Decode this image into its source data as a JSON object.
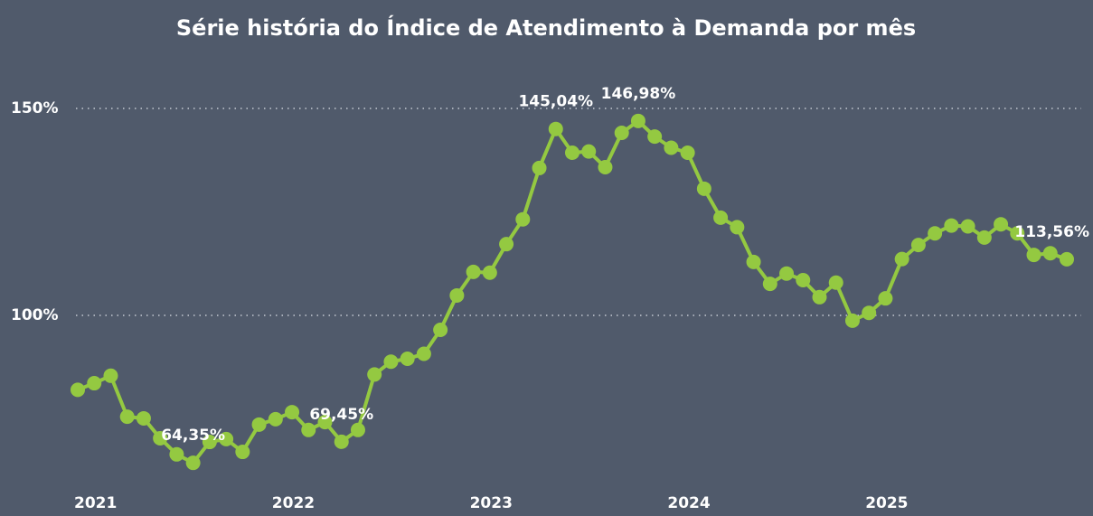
{
  "chart_data": {
    "type": "line",
    "title": "Série história do Índice de Atendimento à Demanda por mês",
    "categories": [
      "2021",
      null,
      null,
      null,
      null,
      null,
      null,
      null,
      null,
      null,
      null,
      null,
      "2022",
      null,
      null,
      null,
      null,
      null,
      null,
      null,
      null,
      null,
      null,
      null,
      "2023",
      null,
      null,
      null,
      null,
      null,
      null,
      null,
      null,
      null,
      null,
      null,
      "2024",
      null,
      null,
      null,
      null,
      null,
      null,
      null,
      null,
      null,
      null,
      null,
      "2025",
      null,
      null,
      null,
      null,
      null,
      null,
      null,
      null,
      null,
      null,
      null,
      null
    ],
    "series": [
      {
        "name": "Índice de Atendimento à Demanda",
        "color": "#94c941",
        "values": [
          82.0,
          83.6,
          85.4,
          75.5,
          75.1,
          70.3,
          66.4,
          64.35,
          69.4,
          70.1,
          67.0,
          73.6,
          74.9,
          76.6,
          72.3,
          74.2,
          69.45,
          72.3,
          85.7,
          88.8,
          89.5,
          90.7,
          96.5,
          104.8,
          110.5,
          110.3,
          117.2,
          123.2,
          135.6,
          145.04,
          139.3,
          139.6,
          135.8,
          144.1,
          146.98,
          143.2,
          140.5,
          139.3,
          130.6,
          123.6,
          121.3,
          112.9,
          107.6,
          110.1,
          108.5,
          104.4,
          107.9,
          98.7,
          100.6,
          104.1,
          113.6,
          117.0,
          119.8,
          121.7,
          121.5,
          118.8,
          122.0,
          119.8,
          114.6,
          115.0,
          113.56
        ],
        "value_labels": [
          null,
          null,
          null,
          null,
          null,
          null,
          null,
          "64,35%",
          null,
          null,
          null,
          null,
          null,
          null,
          null,
          null,
          "69,45%",
          null,
          null,
          null,
          null,
          null,
          null,
          null,
          null,
          null,
          null,
          null,
          null,
          "145,04%",
          null,
          null,
          null,
          null,
          "146,98%",
          null,
          null,
          null,
          null,
          null,
          null,
          null,
          null,
          null,
          null,
          null,
          null,
          null,
          null,
          null,
          null,
          null,
          null,
          null,
          null,
          null,
          null,
          null,
          null,
          null,
          "113,56%"
        ]
      }
    ],
    "ylim": [
      55,
      160
    ],
    "yticks": [
      {
        "value": 100,
        "label": "100%"
      },
      {
        "value": 150,
        "label": "150%"
      }
    ],
    "grid": true
  }
}
